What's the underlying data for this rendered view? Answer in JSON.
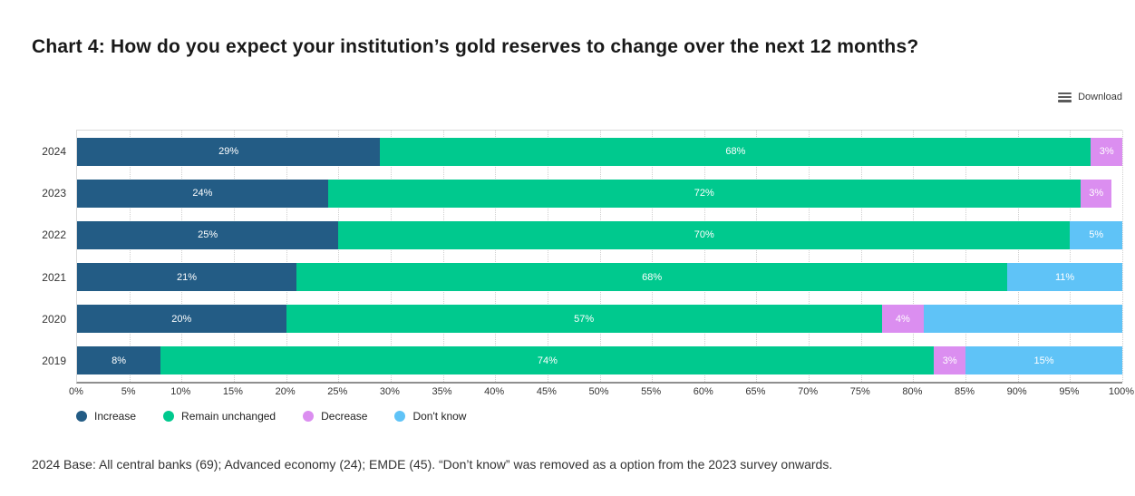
{
  "title": "Chart 4: How do you expect your institution’s gold reserves to change over the next 12 months?",
  "download_label": "Download",
  "footnote": "2024 Base: All central banks (69); Advanced economy (24); EMDE (45). “Don’t know” was removed as a option from the 2023 survey onwards.",
  "chart_data": {
    "type": "bar",
    "orientation": "horizontal-stacked",
    "categories": [
      "2024",
      "2023",
      "2022",
      "2021",
      "2020",
      "2019"
    ],
    "series": [
      {
        "name": "Increase",
        "color": "#235c85",
        "values": [
          29,
          24,
          25,
          21,
          20,
          8
        ],
        "labels": [
          "29%",
          "24%",
          "25%",
          "21%",
          "20%",
          "8%"
        ]
      },
      {
        "name": "Remain unchanged",
        "color": "#00c98e",
        "values": [
          68,
          72,
          70,
          68,
          57,
          74
        ],
        "labels": [
          "68%",
          "72%",
          "70%",
          "68%",
          "57%",
          "74%"
        ]
      },
      {
        "name": "Decrease",
        "color": "#db8ef0",
        "values": [
          3,
          3,
          0,
          0,
          4,
          3
        ],
        "labels": [
          "3%",
          "3%",
          "",
          "",
          "4%",
          "3%"
        ]
      },
      {
        "name": "Don't know",
        "color": "#5fc3f7",
        "values": [
          0,
          0,
          5,
          11,
          19,
          15
        ],
        "labels": [
          "",
          "",
          "5%",
          "11%",
          "",
          "15%"
        ]
      }
    ],
    "x_ticks": [
      "0%",
      "5%",
      "10%",
      "15%",
      "20%",
      "25%",
      "30%",
      "35%",
      "40%",
      "45%",
      "50%",
      "55%",
      "60%",
      "65%",
      "70%",
      "75%",
      "80%",
      "85%",
      "90%",
      "95%",
      "100%"
    ],
    "xlim": [
      0,
      100
    ],
    "grid": "vertical-dotted",
    "legend_position": "bottom-left"
  }
}
